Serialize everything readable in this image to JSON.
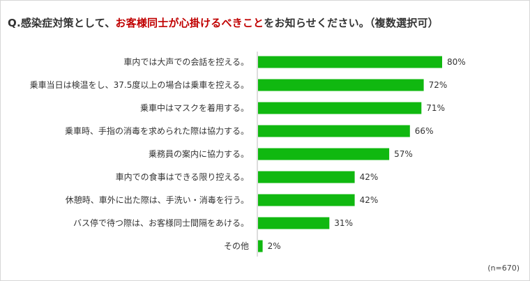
{
  "title": {
    "prefix": "Q.感染症対策として、",
    "highlight": "お客様同士が心掛けるべきこと",
    "suffix": "をお知らせください。（複数選択可）"
  },
  "note": "(n=670)",
  "colors": {
    "bar": "#10b810",
    "highlight": "#c00000",
    "axis": "#bbbbbb"
  },
  "chart_data": {
    "type": "bar",
    "orientation": "horizontal",
    "categories": [
      "車内では大声での会話を控える。",
      "乗車当日は検温をし、37.5度以上の場合は乗車を控える。",
      "乗車中はマスクを着用する。",
      "乗車時、手指の消毒を求められた際は協力する。",
      "乗務員の案内に協力する。",
      "車内での食事はできる限り控える。",
      "休憩時、車外に出た際は、手洗い・消毒を行う。",
      "バス停で待つ際は、お客様同士間隔をあける。",
      "その他"
    ],
    "values": [
      80,
      72,
      71,
      66,
      57,
      42,
      42,
      31,
      2
    ],
    "value_suffix": "%",
    "xlim": [
      0,
      100
    ],
    "grid": false
  }
}
